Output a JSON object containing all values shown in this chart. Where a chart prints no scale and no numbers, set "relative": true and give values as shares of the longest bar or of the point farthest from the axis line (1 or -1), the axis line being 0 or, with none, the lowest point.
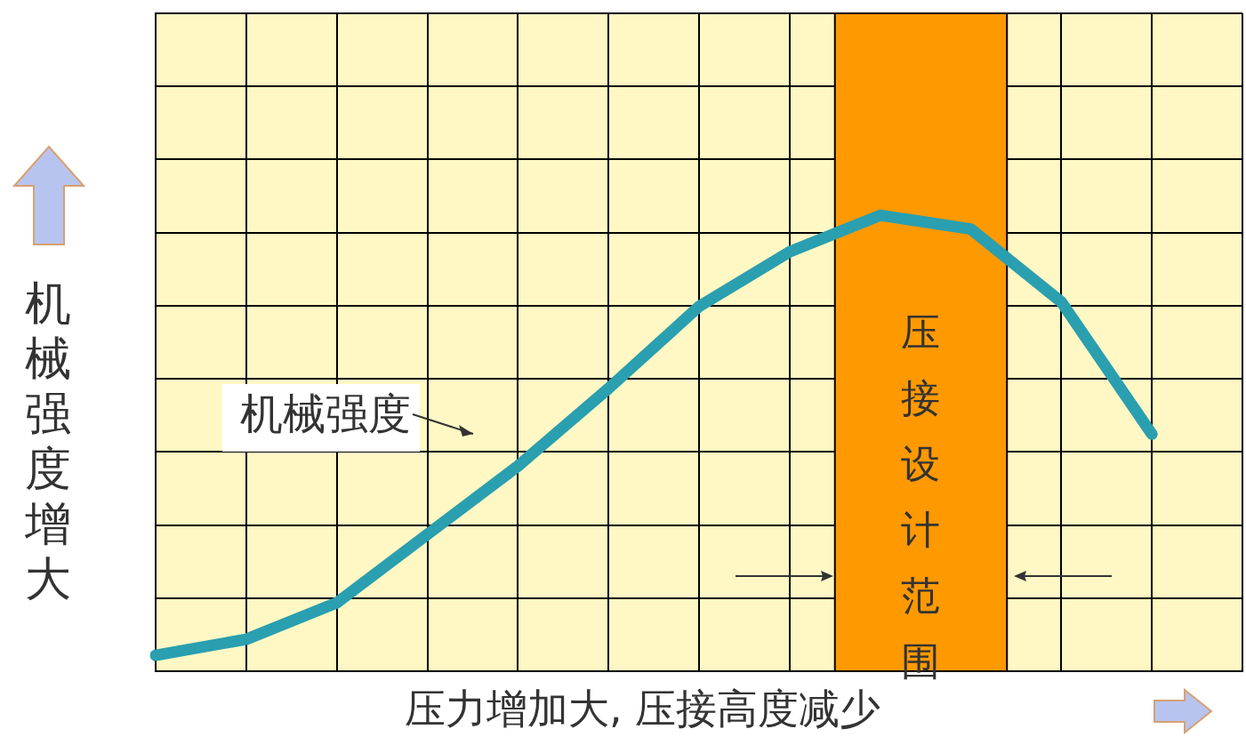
{
  "chart_data": {
    "type": "line",
    "relative": true,
    "xlabel": "压力增加大, 压接高度减少",
    "ylabel": "机械强度增大",
    "categories": [
      null,
      null,
      null,
      null,
      null,
      null,
      null,
      null,
      null,
      null,
      null,
      null,
      null
    ],
    "series": [
      {
        "color": "#2a9fb0",
        "values": [
          0.035,
          0.07,
          0.15,
          0.3,
          0.45,
          0.62,
          0.8,
          0.92,
          1,
          0.97,
          0.81,
          0.52,
          null
        ]
      }
    ],
    "annotations": [
      "机械强度",
      "压接设计范围"
    ],
    "grid": true,
    "legend": false,
    "marker": "none",
    "line_style": "solid"
  }
}
